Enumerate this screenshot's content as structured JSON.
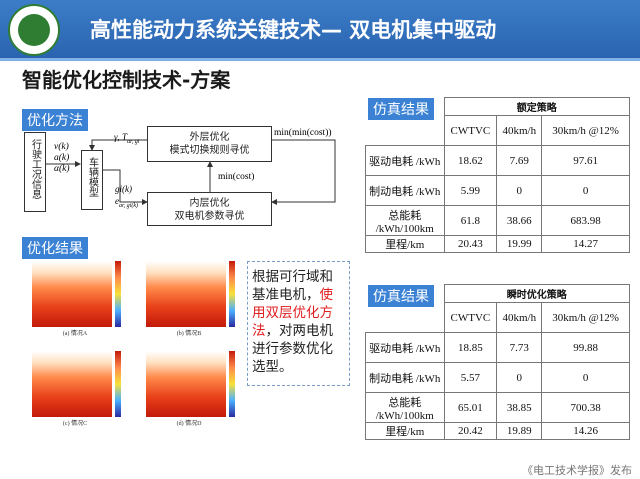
{
  "header": {
    "title": "高性能动力系统关键技术— 双电机集中驱动",
    "logo_text": "北京理工大学"
  },
  "subtitle": "智能优化控制技术-方案",
  "method": {
    "tag": "优化方法",
    "left_box": "行驶工况信息",
    "left_vars": [
      "v(k)",
      "a(k)",
      "α(k)"
    ],
    "vehicle_box": "车辆模型",
    "outer_box": [
      "外层优化",
      "模式切换规则寻优"
    ],
    "inner_box": [
      "内层优化",
      "双电机参数寻优"
    ],
    "gamma_label": "γ, T",
    "gamma_sub": "ar, gi",
    "gi_label": "gi(k)",
    "e_label": "e",
    "e_sub": "ar, gi(k)",
    "min_cost": "min(cost)",
    "min_min_cost": "min(min(cost))"
  },
  "results": {
    "tag": "优化结果",
    "captions": [
      "(a) 情况A",
      "(b) 情况B",
      "(c) 情况C",
      "(d) 情况D"
    ]
  },
  "note": {
    "part1": "根据可行域和基准电机，",
    "part2": "使用双层优化方法",
    "part3": "，对两电机进行参数优化选型。"
  },
  "table1": {
    "tag": "仿真结果",
    "strategy": "额定策略",
    "cols": [
      "CWTVC",
      "40km/h",
      "30km/h @12%"
    ],
    "rows": [
      {
        "label": "驱动电耗 /kWh",
        "values": [
          "18.62",
          "7.69",
          "97.61"
        ]
      },
      {
        "label": "制动电耗 /kWh",
        "values": [
          "5.99",
          "0",
          "0"
        ]
      },
      {
        "label": "总能耗 /kWh/100km",
        "values": [
          "61.8",
          "38.66",
          "683.98"
        ]
      },
      {
        "label": "里程/km",
        "values": [
          "20.43",
          "19.99",
          "14.27"
        ]
      }
    ]
  },
  "table2": {
    "tag": "仿真结果",
    "strategy": "瞬时优化策略",
    "cols": [
      "CWTVC",
      "40km/h",
      "30km/h @12%"
    ],
    "rows": [
      {
        "label": "驱动电耗 /kWh",
        "values": [
          "18.85",
          "7.73",
          "99.88"
        ]
      },
      {
        "label": "制动电耗 /kWh",
        "values": [
          "5.57",
          "0",
          "0"
        ]
      },
      {
        "label": "总能耗 /kWh/100km",
        "values": [
          "65.01",
          "38.85",
          "700.38"
        ]
      },
      {
        "label": "里程/km",
        "values": [
          "20.42",
          "19.89",
          "14.26"
        ]
      }
    ]
  },
  "footer": "《电工技术学报》发布",
  "colors": {
    "header": "#2a64b0",
    "accent": "#3b82d4",
    "highlight": "#e02020"
  }
}
